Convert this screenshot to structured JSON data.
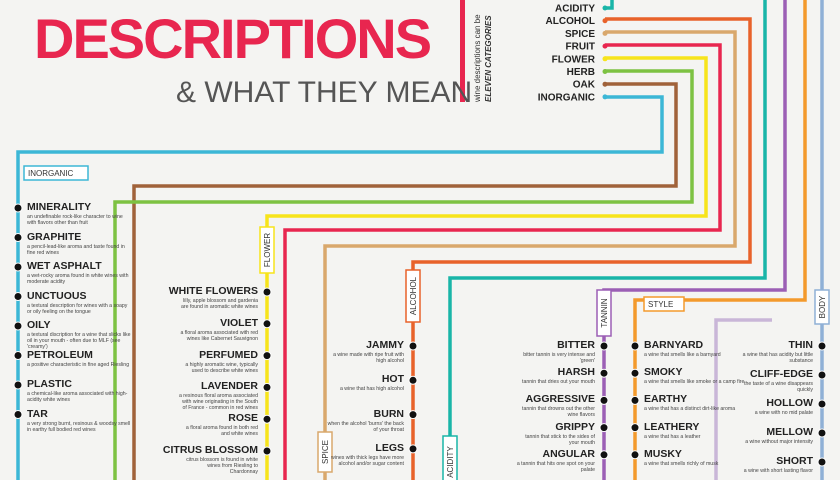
{
  "header": {
    "title": "DESCRIPTIONS",
    "subtitle": "& WHAT THEY MEAN",
    "note": "wine descriptions can be",
    "note_emphasis": "ELEVEN CATEGORIES"
  },
  "legend": [
    "ACIDITY",
    "ALCOHOL",
    "SPICE",
    "FRUIT",
    "FLOWER",
    "HERB",
    "OAK",
    "INORGANIC"
  ],
  "columns": [
    {
      "label": "INORGANIC",
      "items": [
        {
          "term": "MINERALITY",
          "description": "an undefinable rock-like character to wine with flavors other than fruit"
        },
        {
          "term": "GRAPHITE",
          "description": "a pencil-lead-like aroma and taste found in fine red wines"
        },
        {
          "term": "WET ASPHALT",
          "description": "a wet-rocky aroma found in white wines with moderate acidity"
        },
        {
          "term": "UNCTUOUS",
          "description": "a textural description for wines with a soapy or oily feeling on the tongue"
        },
        {
          "term": "OILY",
          "description": "a textural discription for a wine that slicks like oil in your mouth - often due to MLF (see 'creamy')"
        },
        {
          "term": "PETROLEUM",
          "description": "a positive characteristic in fine aged Riesling"
        },
        {
          "term": "PLASTIC",
          "description": "a chemical-like aroma associated with high-acidity white wines"
        },
        {
          "term": "TAR",
          "description": "a very strong burnt, resinous & woodsy smell in earthy full bodied red wines"
        }
      ]
    },
    {
      "label": "FLOWER",
      "items": [
        {
          "term": "WHITE FLOWERS",
          "description": "lilly, apple blossom and gardenia are found in aromatic white wines"
        },
        {
          "term": "VIOLET",
          "description": "a floral aroma associated with red wines like Cabernet Sauvignon"
        },
        {
          "term": "PERFUMED",
          "description": "a highly aromatic wine, typically used to describe white wines"
        },
        {
          "term": "LAVENDER",
          "description": "a resinous floral aroma associated with wine originating in the South of France - common in red wines"
        },
        {
          "term": "ROSE",
          "description": "a floral aroma found in both red and white wines"
        },
        {
          "term": "CITRUS BLOSSOM",
          "description": "citrus blossom is found in white wines from Riesling to Chardonnay"
        }
      ]
    },
    {
      "label": "ALCOHOL",
      "items": [
        {
          "term": "JAMMY",
          "description": "a wine made with ripe fruit with high alcohol"
        },
        {
          "term": "HOT",
          "description": "a wine that has high alcohol"
        },
        {
          "term": "BURN",
          "description": "when the alcohol 'burns' the back of your throat"
        },
        {
          "term": "LEGS",
          "description": "wines with thick legs have more alcohol and/or sugar content"
        }
      ]
    },
    {
      "label": "SPICE"
    },
    {
      "label": "ACIDITY"
    },
    {
      "label": "TANNIN",
      "items": [
        {
          "term": "BITTER",
          "description": "bitter tannin is very intense and 'green'"
        },
        {
          "term": "HARSH",
          "description": "tannin that dries out your mouth"
        },
        {
          "term": "AGGRESSIVE",
          "description": "tannin that drowns out the other wine flavors"
        },
        {
          "term": "GRIPPY",
          "description": "tannin that stick to the sides of your mouth"
        },
        {
          "term": "ANGULAR",
          "description": "a tannin that hits one spot on your palate"
        }
      ]
    },
    {
      "label": "STYLE",
      "items": [
        {
          "term": "BARNYARD",
          "description": "a wine that smells like a barnyard"
        },
        {
          "term": "SMOKY",
          "description": "a wine that smells like smoke or a camp fire"
        },
        {
          "term": "EARTHY",
          "description": "a wine that has a distinct dirt-like aroma"
        },
        {
          "term": "LEATHERY",
          "description": "a wine that has a leather"
        },
        {
          "term": "MUSKY",
          "description": "a wine that smells richly of musk"
        }
      ]
    },
    {
      "label": "BODY",
      "items": [
        {
          "term": "THIN",
          "description": "a wine that has acidity but little substance"
        },
        {
          "term": "CLIFF-EDGE",
          "description": "the taste of a wine disappears quickly"
        },
        {
          "term": "HOLLOW",
          "description": "a wine with no mid palate"
        },
        {
          "term": "MELLOW",
          "description": "a wine without major intensity"
        },
        {
          "term": "SHORT",
          "description": "a wine with short lasting flavor"
        }
      ]
    }
  ]
}
